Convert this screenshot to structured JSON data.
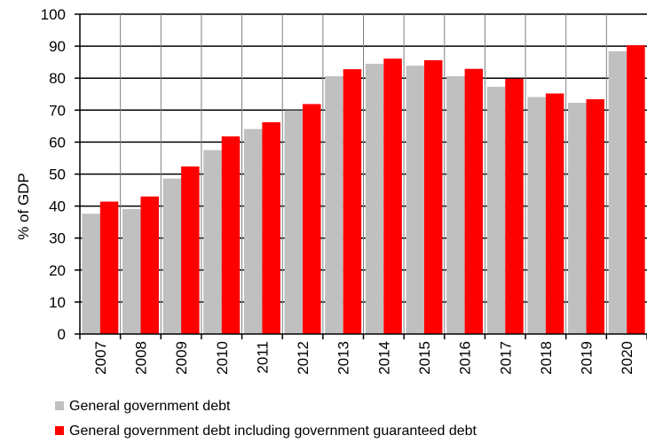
{
  "chart_data": {
    "type": "bar",
    "categories": [
      "2007",
      "2008",
      "2009",
      "2010",
      "2011",
      "2012",
      "2013",
      "2014",
      "2015",
      "2016",
      "2017",
      "2018",
      "2019",
      "2020"
    ],
    "series": [
      {
        "name": "General government debt",
        "color": "#c0c0c0",
        "values": [
          37.6,
          39.1,
          48.6,
          57.5,
          64.1,
          69.9,
          80.6,
          84.5,
          83.9,
          80.6,
          77.3,
          74.1,
          72.3,
          88.4
        ]
      },
      {
        "name": "General government debt including government guaranteed debt",
        "color": "#ff0000",
        "values": [
          41.4,
          43.0,
          52.4,
          61.8,
          66.2,
          71.9,
          82.8,
          86.1,
          85.6,
          82.9,
          79.8,
          75.2,
          73.4,
          90.3
        ]
      }
    ],
    "ylabel": "% of GDP",
    "xlabel": "",
    "ylim": [
      0,
      100
    ],
    "yticks": [
      0,
      10,
      20,
      30,
      40,
      50,
      60,
      70,
      80,
      90,
      100
    ],
    "grid": true,
    "legend": "bottom-left"
  }
}
